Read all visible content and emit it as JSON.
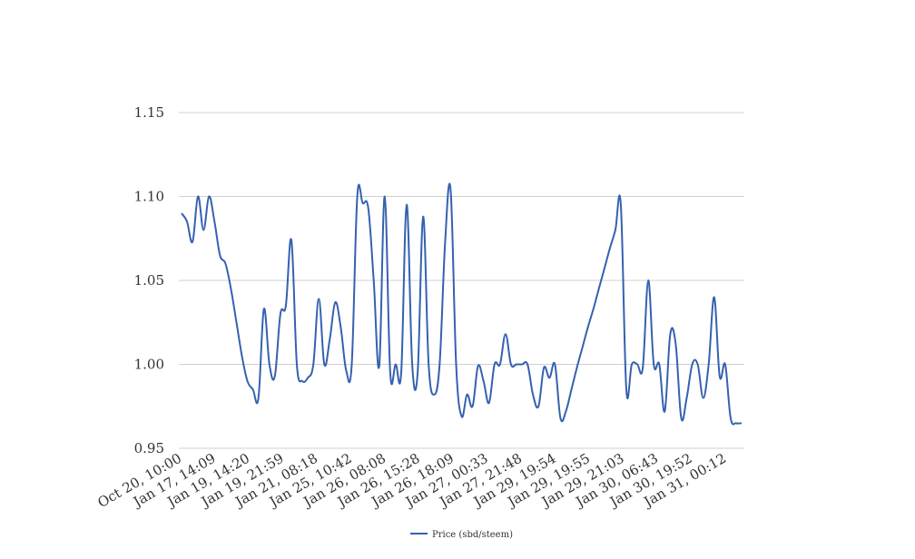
{
  "chart_data": {
    "type": "line",
    "title": "",
    "xlabel": "",
    "ylabel": "",
    "ylim": [
      0.95,
      1.15
    ],
    "y_ticks": [
      "0.95",
      "1.00",
      "1.05",
      "1.10",
      "1.15"
    ],
    "grid": "horizontal",
    "legend_position": "bottom-center",
    "x_tick_labels": [
      "Oct 20, 10:00",
      "Jan 17, 14:09",
      "Jan 19, 14:20",
      "Jan 19, 21:59",
      "Jan 21, 08:18",
      "Jan 25, 10:42",
      "Jan 26, 08:08",
      "Jan 26, 15:28",
      "Jan 26, 18:09",
      "Jan 27, 00:33",
      "Jan 27, 21:48",
      "Jan 29, 19:54",
      "Jan 29, 19:55",
      "Jan 29, 21:03",
      "Jan 30, 06:43",
      "Jan 30, 19:52",
      "Jan 31, 00:12"
    ],
    "series": [
      {
        "name": "Price (sbd/steem)",
        "color": "#3561b0",
        "values": [
          1.09,
          1.085,
          1.073,
          1.1,
          1.08,
          1.1,
          1.085,
          1.065,
          1.06,
          1.045,
          1.025,
          1.005,
          0.99,
          0.985,
          0.98,
          1.033,
          1.0,
          0.993,
          1.03,
          1.035,
          1.074,
          1.0,
          0.99,
          0.992,
          1.0,
          1.039,
          1.0,
          1.015,
          1.037,
          1.022,
          0.996,
          1.0,
          1.1,
          1.096,
          1.093,
          1.05,
          0.999,
          1.1,
          0.995,
          1.0,
          0.995,
          1.095,
          1.0,
          0.995,
          1.088,
          1.0,
          0.982,
          1.0,
          1.073,
          1.104,
          1.0,
          0.969,
          0.982,
          0.975,
          0.999,
          0.99,
          0.977,
          1.0,
          1.0,
          1.018,
          1.0,
          1.0,
          1.0,
          1.0,
          0.982,
          0.975,
          0.998,
          0.992,
          1.0,
          0.968,
          0.972,
          0.985,
          0.998,
          1.01,
          1.022,
          1.033,
          1.045,
          1.057,
          1.069,
          1.08,
          1.095,
          0.985,
          1.0,
          1.0,
          0.998,
          1.05,
          1.0,
          1.0,
          0.972,
          1.018,
          1.012,
          0.968,
          0.98,
          1.0,
          1.0,
          0.98,
          1.0,
          1.04,
          0.993,
          1.0,
          0.968,
          0.965,
          0.965
        ]
      }
    ]
  }
}
